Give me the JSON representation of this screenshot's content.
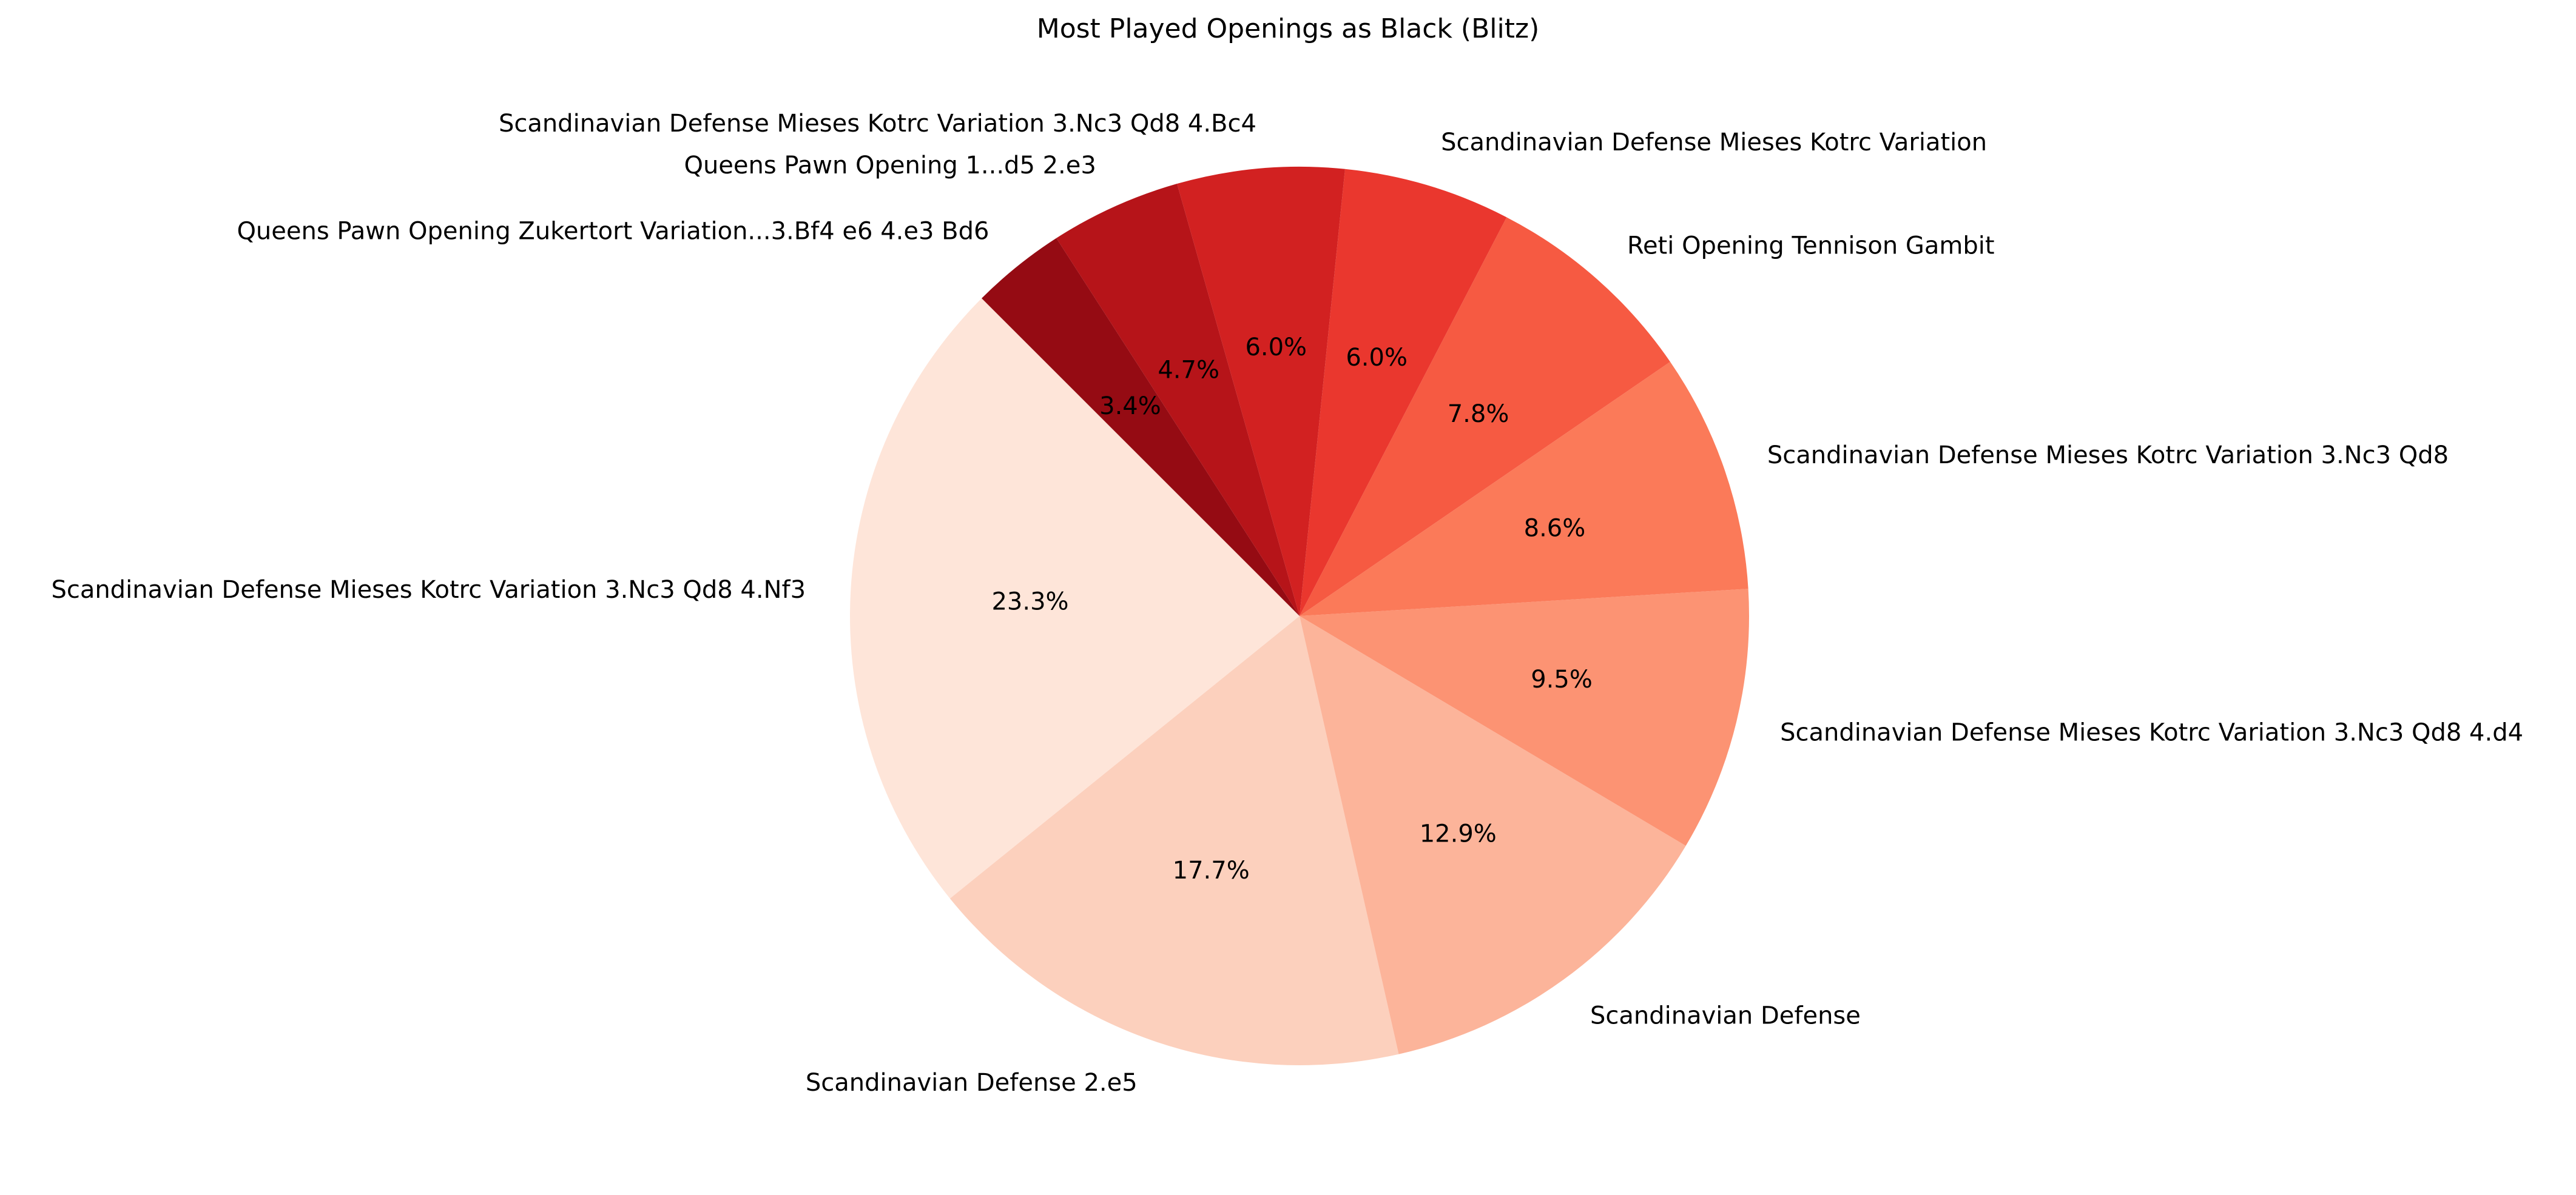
{
  "chart_data": {
    "type": "pie",
    "title": "Most Played Openings as Black (Blitz)",
    "start_angle_deg": 135,
    "direction": "counterclockwise",
    "slices": [
      {
        "label": "Scandinavian Defense Mieses Kotrc Variation 3.Nc3 Qd8 4.Nf3",
        "value": 23.3,
        "pct_label": "23.3%",
        "color": "#fee5d9"
      },
      {
        "label": "Scandinavian Defense 2.e5",
        "value": 17.7,
        "pct_label": "17.7%",
        "color": "#fcd0bd"
      },
      {
        "label": "Scandinavian Defense",
        "value": 12.9,
        "pct_label": "12.9%",
        "color": "#fcb49a"
      },
      {
        "label": "Scandinavian Defense Mieses Kotrc Variation 3.Nc3 Qd8 4.d4",
        "value": 9.5,
        "pct_label": "9.5%",
        "color": "#fc9373"
      },
      {
        "label": "Scandinavian Defense Mieses Kotrc Variation 3.Nc3 Qd8",
        "value": 8.6,
        "pct_label": "8.6%",
        "color": "#fb7a59"
      },
      {
        "label": "Reti Opening Tennison Gambit",
        "value": 7.8,
        "pct_label": "7.8%",
        "color": "#f65a42"
      },
      {
        "label": "Scandinavian Defense Mieses Kotrc Variation",
        "value": 6.0,
        "pct_label": "6.0%",
        "color": "#ea372e"
      },
      {
        "label": "Scandinavian Defense Mieses Kotrc Variation 3.Nc3 Qd8 4.Bc4",
        "value": 6.0,
        "pct_label": "6.0%",
        "color": "#d22121"
      },
      {
        "label": "Queens Pawn Opening 1...d5 2.e3",
        "value": 4.7,
        "pct_label": "4.7%",
        "color": "#b61419"
      },
      {
        "label": "Queens Pawn Opening Zukertort Variation...3.Bf4 e6 4.e3 Bd6",
        "value": 3.4,
        "pct_label": "3.4%",
        "color": "#950b13"
      }
    ]
  }
}
